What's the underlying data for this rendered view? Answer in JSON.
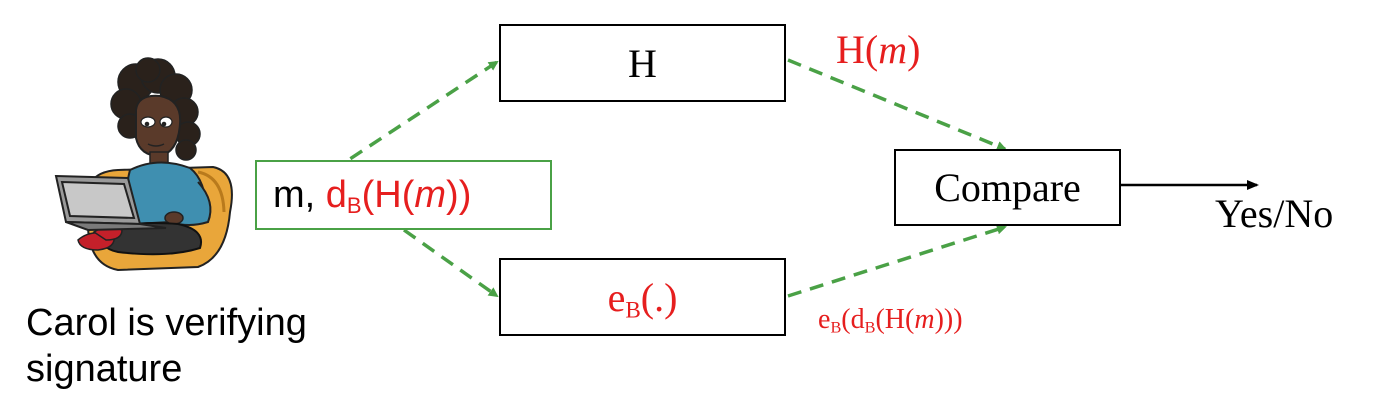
{
  "boxes": {
    "hash": "H",
    "compare": "Compare",
    "eb_prefix": "e",
    "eb_sub": "B",
    "eb_suffix": "(.)"
  },
  "input": {
    "m_part": "m, ",
    "d": "d",
    "d_sub": "B",
    "open": "(H(",
    "m": "m",
    "close": "))"
  },
  "labels": {
    "hm_prefix": "H(",
    "hm_m": "m",
    "hm_suffix": ")",
    "ebdb_e": "e",
    "ebdb_e_sub": "B",
    "ebdb_open": "(d",
    "ebdb_d_sub": "B",
    "ebdb_h": "(H(",
    "ebdb_m": "m",
    "ebdb_close": ")))",
    "output": "Yes/No"
  },
  "caption": {
    "line1": "Carol is verifying",
    "line2": "signature"
  },
  "colors": {
    "red_text": "#e61e1e",
    "green_arrow": "#4aa146",
    "box_border": "#000000"
  },
  "figure": "carol-laptop-illustration"
}
